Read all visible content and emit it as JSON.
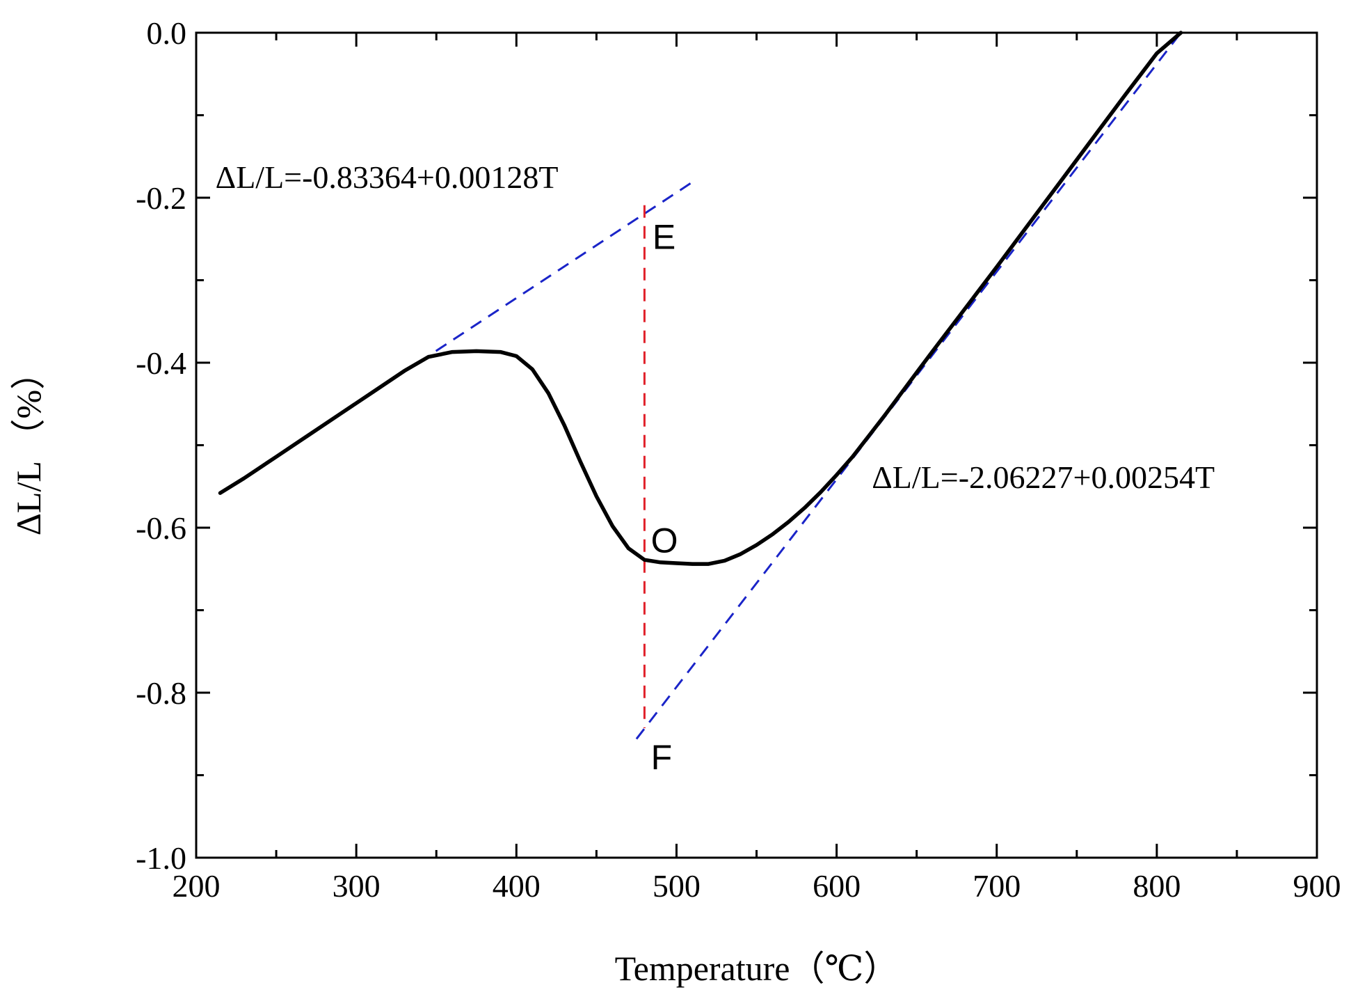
{
  "chart_data": {
    "type": "line",
    "title": "",
    "xlabel": "Temperature（℃）",
    "ylabel": "ΔL/L （%）",
    "xlim": [
      200,
      900
    ],
    "ylim": [
      -1.0,
      0.0
    ],
    "x_ticks": [
      200,
      300,
      400,
      500,
      600,
      700,
      800,
      900
    ],
    "x_tick_labels": [
      "200",
      "300",
      "400",
      "500",
      "600",
      "700",
      "800",
      "900"
    ],
    "y_ticks": [
      0.0,
      -0.2,
      -0.4,
      -0.6,
      -0.8,
      -1.0
    ],
    "y_tick_labels": [
      "0.0",
      "-0.2",
      "-0.4",
      "-0.6",
      "-0.8",
      "-1.0"
    ],
    "grid": false,
    "series": [
      {
        "role": "measured dilatation curve",
        "color": "#000000",
        "style": "solid",
        "x": [
          215,
          230,
          250,
          270,
          290,
          310,
          330,
          345,
          360,
          375,
          390,
          400,
          410,
          420,
          430,
          440,
          450,
          460,
          470,
          480,
          490,
          500,
          510,
          520,
          530,
          540,
          550,
          560,
          570,
          580,
          590,
          600,
          610,
          620,
          630,
          640,
          650,
          660,
          680,
          700,
          720,
          740,
          760,
          780,
          800,
          815
        ],
        "y": [
          -0.558,
          -0.54,
          -0.514,
          -0.488,
          -0.462,
          -0.436,
          -0.41,
          -0.393,
          -0.387,
          -0.386,
          -0.387,
          -0.392,
          -0.408,
          -0.437,
          -0.476,
          -0.52,
          -0.562,
          -0.598,
          -0.625,
          -0.639,
          -0.642,
          -0.643,
          -0.644,
          -0.644,
          -0.64,
          -0.632,
          -0.621,
          -0.608,
          -0.593,
          -0.576,
          -0.557,
          -0.536,
          -0.514,
          -0.489,
          -0.464,
          -0.438,
          -0.412,
          -0.386,
          -0.335,
          -0.284,
          -0.232,
          -0.18,
          -0.128,
          -0.076,
          -0.025,
          0.0
        ]
      },
      {
        "role": "fitted line",
        "color": "#1a24c8",
        "style": "dashed",
        "x": [
          230,
          510
        ],
        "y": [
          -0.539,
          -0.181
        ]
      },
      {
        "role": "fitted line",
        "color": "#1a24c8",
        "style": "dashed",
        "x": [
          475,
          815
        ],
        "y": [
          -0.856,
          0.0
        ]
      },
      {
        "role": "vertical marker",
        "color": "#e0202a",
        "style": "dashed",
        "x": [
          480,
          480
        ],
        "y": [
          -0.209,
          -0.843
        ]
      }
    ],
    "annotations": [
      {
        "text": "ΔL/L=-0.83364+0.00128T",
        "x": 212,
        "y": -0.188,
        "kind": "equation"
      },
      {
        "text": "ΔL/L=-2.06227+0.00254T",
        "x": 622,
        "y": -0.552,
        "kind": "equation"
      },
      {
        "text": "E",
        "x": 485,
        "y": -0.262,
        "kind": "point"
      },
      {
        "text": "O",
        "x": 484,
        "y": -0.63,
        "kind": "point"
      },
      {
        "text": "F",
        "x": 484,
        "y": -0.893,
        "kind": "point"
      }
    ]
  }
}
